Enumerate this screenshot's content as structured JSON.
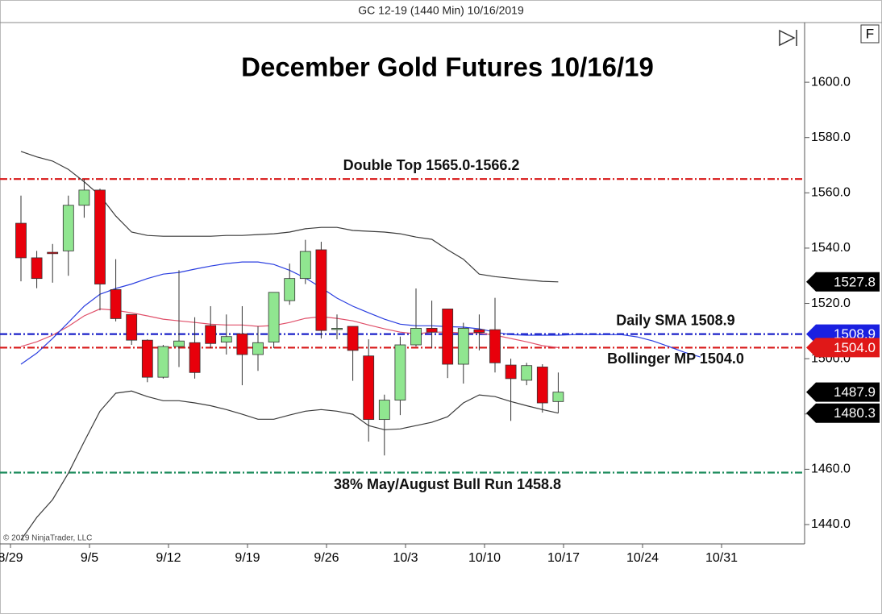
{
  "chart_data": {
    "type": "candlestick",
    "header": "GC 12-19 (1440 Min)  10/16/2019",
    "title": "December Gold Futures 10/16/19",
    "copyright": "© 2019 NinjaTrader, LLC",
    "panel_button": "F",
    "categories": [
      "8/29",
      null,
      null,
      null,
      null,
      "9/5",
      null,
      null,
      null,
      null,
      "9/12",
      null,
      null,
      null,
      null,
      "9/19",
      null,
      null,
      null,
      null,
      "9/26",
      null,
      null,
      null,
      null,
      "10/3",
      null,
      null,
      null,
      null,
      "10/10",
      null,
      null,
      null,
      null,
      "10/17",
      null,
      null,
      null,
      null,
      "10/24",
      null,
      null,
      null,
      null,
      "10/31",
      null,
      null,
      null
    ],
    "open": [
      1549,
      1536.5,
      1538.5,
      1539,
      1555.5,
      1561,
      1525,
      1516,
      1506.7,
      1493.3,
      1504.4,
      1505.8,
      1512,
      1506,
      1509,
      1501.5,
      1506,
      1521,
      1529,
      1539.4,
      1511,
      1511.7,
      1501,
      1478,
      1485,
      1505,
      1511,
      1518,
      1498,
      1510.5,
      1510.5,
      1497.7,
      1492.2,
      1497,
      1484.5,
      null,
      null,
      null,
      null,
      null,
      null,
      null,
      null,
      null,
      null,
      null,
      null,
      null,
      null
    ],
    "high": [
      1559,
      1539,
      1541.5,
      1559,
      1565,
      1561.5,
      1536,
      1516,
      1507,
      1505,
      1532,
      1515,
      1519,
      1516,
      1519,
      1511.7,
      1524,
      1534.4,
      1543,
      1542.3,
      1516,
      1511.7,
      1507,
      1487,
      1508,
      1525.4,
      1521,
      1518,
      1513,
      1516,
      1522,
      1500,
      1498.5,
      1498,
      1495,
      null,
      null,
      null,
      null,
      null,
      null,
      null,
      null,
      null,
      null,
      null,
      null,
      null,
      null
    ],
    "low": [
      1528,
      1525.5,
      1527.5,
      1530,
      1551,
      1517.5,
      1513.5,
      1505,
      1491.5,
      1492.8,
      1497,
      1492.8,
      1503.8,
      1501.5,
      1490.4,
      1495.6,
      1503.8,
      1519.5,
      1527,
      1507.3,
      1507,
      1492,
      1470,
      1465,
      1479.6,
      1504.4,
      1503.8,
      1493,
      1491,
      1503,
      1495,
      1477.5,
      1490.4,
      1480.5,
      1480.3,
      null,
      null,
      null,
      null,
      null,
      null,
      null,
      null,
      null,
      null,
      null,
      null,
      null,
      null
    ],
    "close": [
      1536.5,
      1529,
      1538,
      1555.5,
      1561,
      1527,
      1514.5,
      1506.7,
      1493.3,
      1504.4,
      1506.4,
      1495,
      1505.5,
      1508,
      1501.5,
      1505.8,
      1524,
      1529,
      1538.8,
      1510.2,
      1511,
      1503,
      1478,
      1485,
      1505,
      1511,
      1509.6,
      1498,
      1511,
      1509.5,
      1498.5,
      1492.8,
      1497.5,
      1484,
      1487.9,
      null,
      null,
      null,
      null,
      null,
      null,
      null,
      null,
      null,
      null,
      null,
      null,
      null,
      null
    ],
    "up_color": "#90e690",
    "down_color": "#e8000b",
    "series": [
      {
        "color": "#3a3a3a",
        "values": [
          1575,
          1573,
          1571.5,
          1568.5,
          1564,
          1559,
          1551.6,
          1545.8,
          1544.6,
          1544.3,
          1544.3,
          1544.3,
          1544.3,
          1544.6,
          1544.6,
          1544.9,
          1545.2,
          1545.8,
          1547,
          1547.5,
          1547.5,
          1546.4,
          1546.1,
          1545.8,
          1545.2,
          1544,
          1543.2,
          1539.4,
          1536,
          1530.6,
          1529.7,
          1529.1,
          1528.5,
          1528,
          1527.8,
          null,
          null,
          null,
          null,
          null,
          null,
          null,
          null,
          null,
          null,
          null,
          null,
          null,
          null
        ]
      },
      {
        "color": "#3a3a3a",
        "values": [
          1434.4,
          1442.6,
          1449,
          1458.6,
          1470,
          1481,
          1487.5,
          1488.3,
          1486.3,
          1484.8,
          1484.8,
          1484,
          1483,
          1481.6,
          1479.9,
          1478.1,
          1478.1,
          1479.6,
          1481,
          1481.6,
          1481,
          1479.9,
          1475.8,
          1474.3,
          1474.6,
          1475.8,
          1477,
          1479,
          1484,
          1486.9,
          1486.3,
          1484.5,
          1483,
          1481.6,
          1480.3,
          null,
          null,
          null,
          null,
          null,
          null,
          null,
          null,
          null,
          null,
          null,
          null,
          null,
          null
        ]
      },
      {
        "color": "#e0506a",
        "values": [
          1504.4,
          1506.1,
          1508.5,
          1511.7,
          1515.5,
          1518,
          1517.5,
          1516.6,
          1515.5,
          1514.3,
          1513.7,
          1513.1,
          1512.5,
          1512.2,
          1512.2,
          1511.7,
          1512,
          1513.1,
          1514.6,
          1515.2,
          1514.6,
          1513.7,
          1512.2,
          1510.8,
          1509.6,
          1509,
          1509.6,
          1509.6,
          1509.3,
          1509.3,
          1508.5,
          1507.3,
          1506.1,
          1504.7,
          1504.0,
          null,
          null,
          null,
          null,
          null,
          null,
          null,
          null,
          null,
          null,
          null,
          null,
          null,
          null
        ]
      },
      {
        "color": "#2a3ee0",
        "values": [
          1498,
          1502,
          1507.3,
          1513.1,
          1519,
          1523.3,
          1525.4,
          1527,
          1529,
          1530.6,
          1531.2,
          1532.4,
          1533.5,
          1534.4,
          1535,
          1535,
          1534.1,
          1532,
          1529.2,
          1525.7,
          1521.9,
          1519,
          1516.6,
          1514.3,
          1512.5,
          1511.9,
          1511.9,
          1511.6,
          1511.4,
          1510.8,
          1509.6,
          1508.7,
          1508.5,
          1508.5,
          1508.5,
          1508.7,
          1508.7,
          1508.7,
          1508.7,
          1507.9,
          1506.4,
          1504.4,
          1502.3,
          1500.6,
          null,
          null,
          null,
          null,
          null
        ]
      }
    ],
    "levels": [
      {
        "value": 1565.0,
        "label": "Double Top 1565.0-1566.2",
        "color": "#d81818"
      },
      {
        "value": 1508.9,
        "label": "Daily SMA 1508.9",
        "color": "#1a20c8"
      },
      {
        "value": 1504.0,
        "label": "Bollinger MP 1504.0",
        "color": "#d81818"
      },
      {
        "value": 1458.8,
        "label": "38% May/August Bull Run 1458.8",
        "color": "#1a8a5a"
      }
    ],
    "axis_markers": [
      {
        "value": 1527.8,
        "label": "1527.8",
        "color": "#000000"
      },
      {
        "value": 1508.9,
        "label": "1508.9",
        "color": "#1a20e0"
      },
      {
        "value": 1504.0,
        "label": "1504.0",
        "color": "#e01818"
      },
      {
        "value": 1487.9,
        "label": "1487.9",
        "color": "#000000"
      },
      {
        "value": 1480.3,
        "label": "1480.3",
        "color": "#000000"
      }
    ],
    "ylim": [
      1433,
      1621.6
    ],
    "yticks": [
      {
        "value": 1440,
        "label": "1440.0"
      },
      {
        "value": 1460,
        "label": "1460.0"
      },
      {
        "value": 1480,
        "label": "1480.0"
      },
      {
        "value": 1500,
        "label": "1500.0"
      },
      {
        "value": 1520,
        "label": "1520.0"
      },
      {
        "value": 1540,
        "label": "1540.0"
      },
      {
        "value": 1560,
        "label": "1560.0"
      },
      {
        "value": 1580,
        "label": "1580.0"
      },
      {
        "value": 1600,
        "label": "1600.0"
      }
    ]
  }
}
